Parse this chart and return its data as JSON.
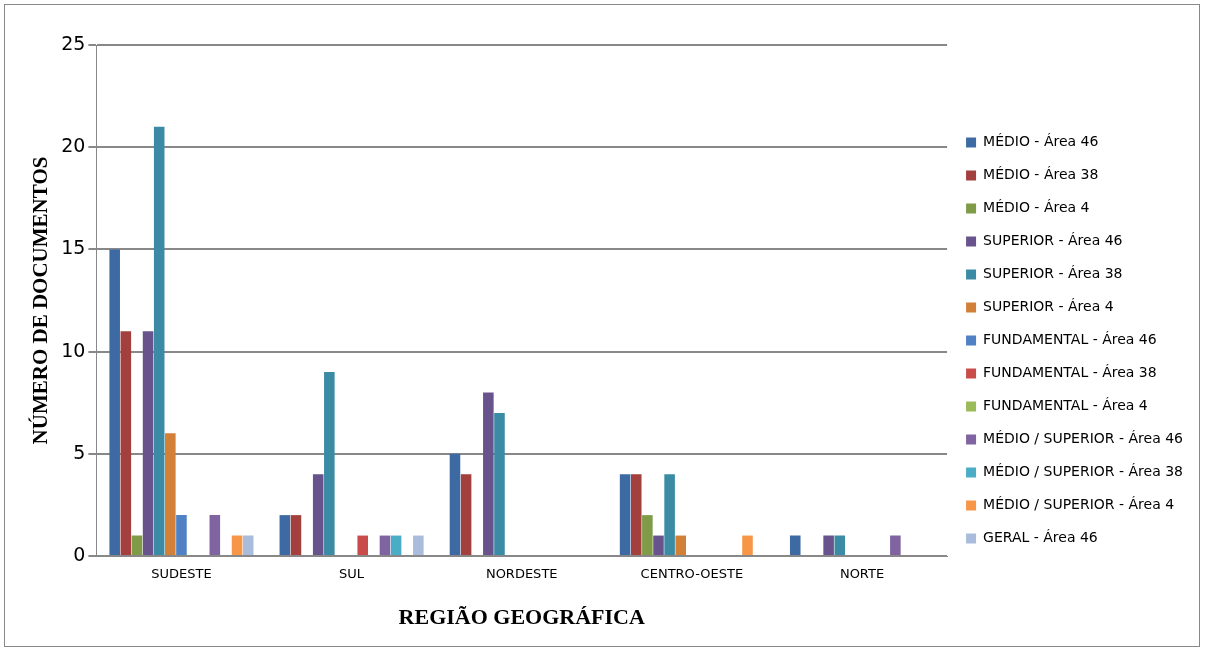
{
  "chart_data": {
    "type": "bar",
    "xlabel": "REGIÃO GEOGRÁFICA",
    "ylabel": "NÚMERO DE DOCUMENTOS",
    "categories": [
      "SUDESTE",
      "SUL",
      "NORDESTE",
      "CENTRO-OESTE",
      "NORTE"
    ],
    "series": [
      {
        "name": "MÉDIO - Área 46",
        "color": "#3e6aa3",
        "values": [
          15,
          2,
          5,
          4,
          1
        ]
      },
      {
        "name": "MÉDIO - Área 38",
        "color": "#a33f3c",
        "values": [
          11,
          2,
          4,
          4,
          0
        ]
      },
      {
        "name": "MÉDIO - Área 4",
        "color": "#7f9b47",
        "values": [
          1,
          0,
          0,
          2,
          0
        ]
      },
      {
        "name": "SUPERIOR - Área 46",
        "color": "#69538c",
        "values": [
          11,
          4,
          8,
          1,
          1
        ]
      },
      {
        "name": "SUPERIOR - Área 38",
        "color": "#3a8ba3",
        "values": [
          21,
          9,
          7,
          4,
          1
        ]
      },
      {
        "name": "SUPERIOR - Área 4",
        "color": "#d27f38",
        "values": [
          6,
          0,
          0,
          1,
          0
        ]
      },
      {
        "name": "FUNDAMENTAL - Área 46",
        "color": "#4f81c4",
        "values": [
          2,
          0,
          0,
          0,
          0
        ]
      },
      {
        "name": "FUNDAMENTAL - Área 38",
        "color": "#c84d4a",
        "values": [
          0,
          1,
          0,
          0,
          0
        ]
      },
      {
        "name": "FUNDAMENTAL - Área 4",
        "color": "#9bbb59",
        "values": [
          0,
          0,
          0,
          0,
          0
        ]
      },
      {
        "name": "MÉDIO / SUPERIOR - Área 46",
        "color": "#8064a2",
        "values": [
          2,
          1,
          0,
          0,
          1
        ]
      },
      {
        "name": "MÉDIO / SUPERIOR - Área 38",
        "color": "#4bacc6",
        "values": [
          0,
          1,
          0,
          0,
          0
        ]
      },
      {
        "name": "MÉDIO / SUPERIOR - Área 4",
        "color": "#f79646",
        "values": [
          1,
          0,
          0,
          1,
          0
        ]
      },
      {
        "name": "GERAL - Área 46",
        "color": "#a9bcdc",
        "values": [
          1,
          1,
          0,
          0,
          0
        ]
      }
    ],
    "ylim": [
      0,
      25
    ],
    "yticks": [
      0,
      5,
      10,
      15,
      20,
      25
    ],
    "grid": "y",
    "legend": "right"
  }
}
